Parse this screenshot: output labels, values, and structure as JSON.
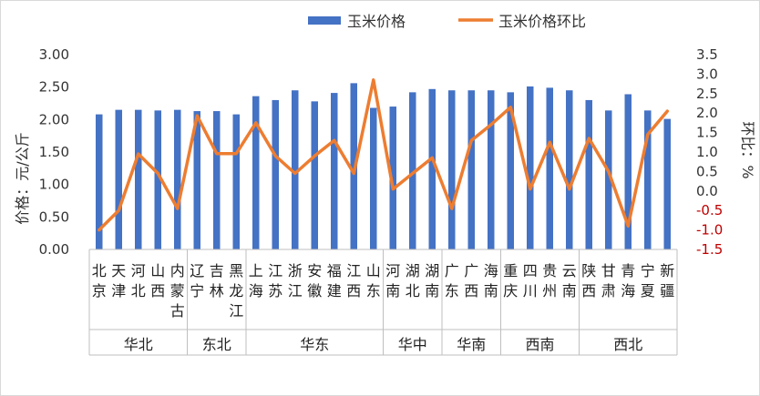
{
  "chart_data": {
    "type": "bar",
    "categories": [
      "北京",
      "天津",
      "河北",
      "山西",
      "内蒙古",
      "辽宁",
      "吉林",
      "黑龙江",
      "上海",
      "江苏",
      "浙江",
      "安徽",
      "福建",
      "江西",
      "山东",
      "河南",
      "湖北",
      "湖南",
      "广东",
      "广西",
      "海南",
      "重庆",
      "四川",
      "贵州",
      "云南",
      "陕西",
      "甘肃",
      "青海",
      "宁夏",
      "新疆"
    ],
    "groups": [
      {
        "name": "华北",
        "count": 5
      },
      {
        "name": "东北",
        "count": 3
      },
      {
        "name": "华东",
        "count": 7
      },
      {
        "name": "华中",
        "count": 3
      },
      {
        "name": "华南",
        "count": 3
      },
      {
        "name": "西南",
        "count": 4
      },
      {
        "name": "西北",
        "count": 5
      }
    ],
    "series": [
      {
        "name": "玉米价格",
        "type": "bar",
        "axis": "left",
        "color": "#4472c4",
        "values": [
          2.08,
          2.15,
          2.15,
          2.14,
          2.15,
          2.13,
          2.13,
          2.08,
          2.36,
          2.3,
          2.45,
          2.28,
          2.41,
          2.56,
          2.18,
          2.2,
          2.42,
          2.47,
          2.45,
          2.45,
          2.45,
          2.42,
          2.51,
          2.49,
          2.45,
          2.3,
          2.14,
          2.39,
          2.14,
          2.01
        ]
      },
      {
        "name": "玉米价格环比",
        "type": "line",
        "axis": "right",
        "color": "#ed7d31",
        "values": [
          -1.0,
          -0.5,
          0.95,
          0.45,
          -0.45,
          1.93,
          0.96,
          0.96,
          1.75,
          0.9,
          0.45,
          0.9,
          1.3,
          0.45,
          2.85,
          0.05,
          0.45,
          0.85,
          -0.45,
          1.3,
          1.7,
          2.15,
          0.05,
          1.25,
          0.05,
          1.35,
          0.5,
          -0.9,
          1.45,
          2.05
        ]
      }
    ],
    "ylabel": "价格：元/公斤",
    "y2label": "环比：%",
    "ylim": [
      0,
      3.0
    ],
    "yticks": [
      "0.00",
      "0.50",
      "1.00",
      "1.50",
      "2.00",
      "2.50",
      "3.00"
    ],
    "y2lim": [
      -1.5,
      3.5
    ],
    "y2ticks": [
      "-1.5",
      "-1.0",
      "-0.5",
      "0.0",
      "0.5",
      "1.0",
      "1.5",
      "2.0",
      "2.5",
      "3.0",
      "3.5"
    ],
    "legend_position": "top",
    "grid": false
  },
  "colors": {
    "negative_tick": "#c00000",
    "axis": "#bfbfbf",
    "border": "#d9d9d9"
  }
}
